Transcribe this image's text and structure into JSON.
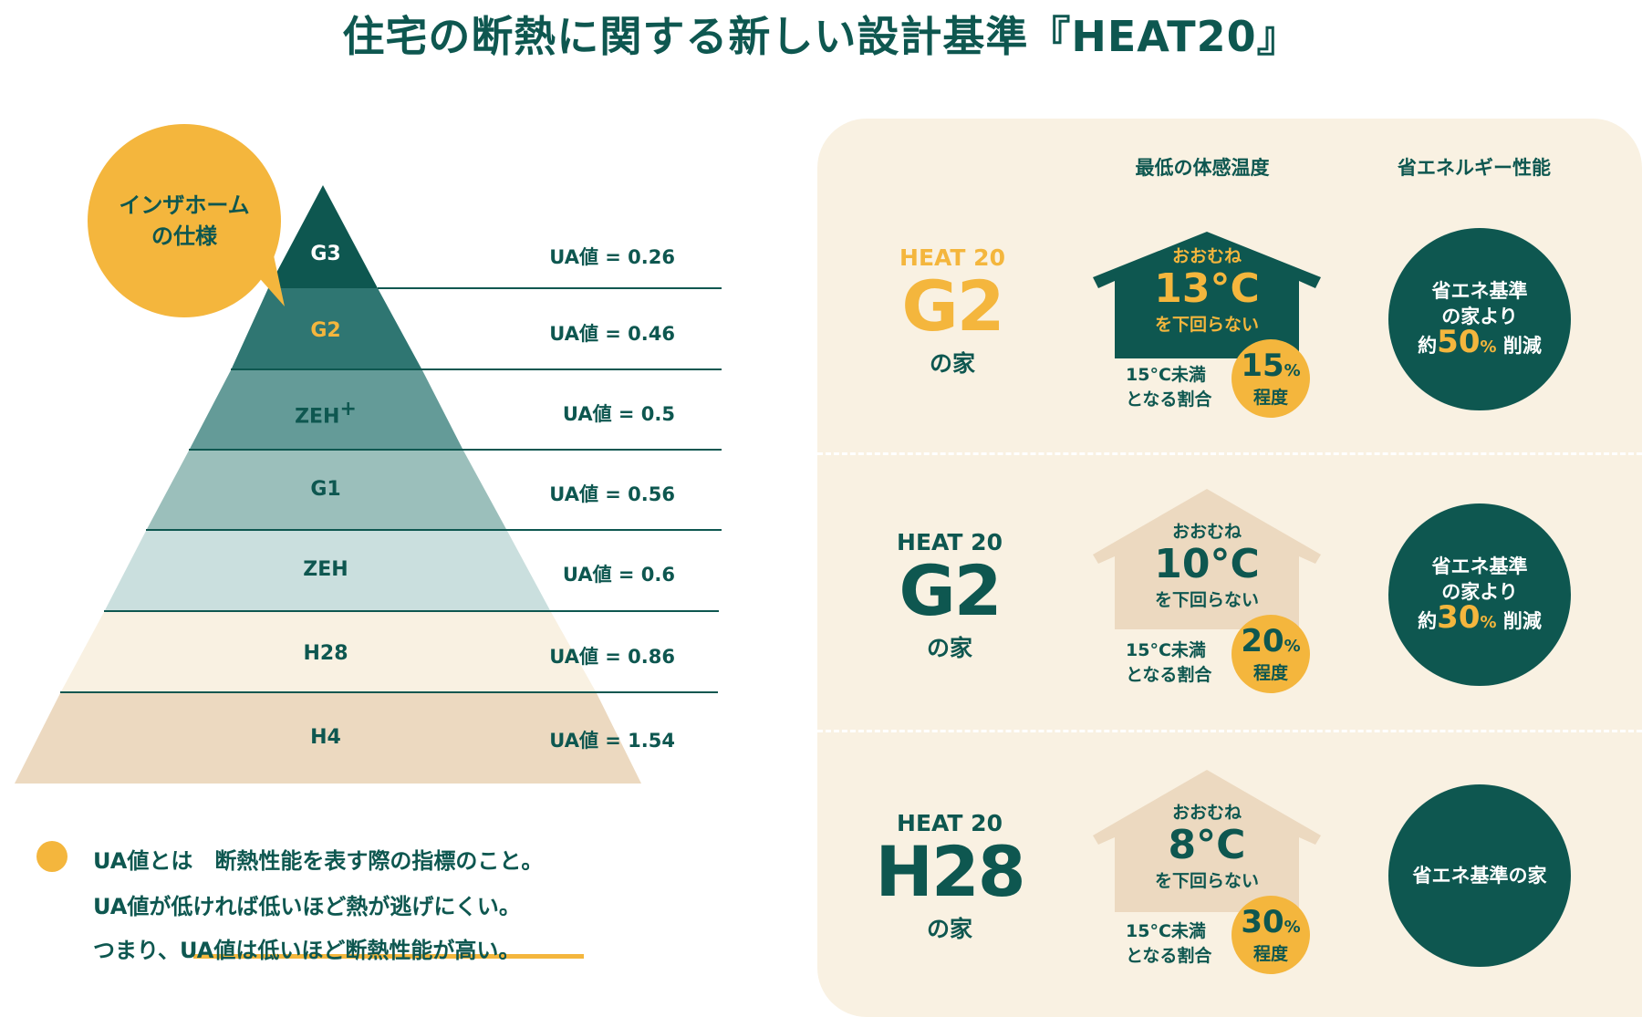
{
  "title": "住宅の断熱に関する新しい設計基準『HEAT20』",
  "colors": {
    "dark": "#0e5750",
    "accent": "#f4b63d",
    "panel": "#f9f1e2",
    "beige": "#ecd9c0"
  },
  "bubble": {
    "line1": "インザホーム",
    "line2": "の仕様"
  },
  "pyramid": {
    "levels": [
      {
        "name": "G3",
        "ua": "UA値 = 0.26"
      },
      {
        "name": "G2",
        "ua": "UA値 = 0.46"
      },
      {
        "name": "ZEH",
        "sup": "+",
        "ua": "UA値 = 0.5"
      },
      {
        "name": "G1",
        "ua": "UA値 = 0.56"
      },
      {
        "name": "ZEH",
        "ua": "UA値 = 0.6"
      },
      {
        "name": "H28",
        "ua": "UA値 = 0.86"
      },
      {
        "name": "H4",
        "ua": "UA値 = 1.54"
      }
    ]
  },
  "note": {
    "line1": "UA値とは　断熱性能を表す際の指標のこと。",
    "line2": "UA値が低ければ低いほど熱が逃げにくい。",
    "line3a": "つまり、",
    "line3b": "UA値は低いほど断熱性能が高い。"
  },
  "panel": {
    "col_temp": "最低の体感温度",
    "col_energy": "省エネルギー性能",
    "rows": [
      {
        "heat": "HEAT 20",
        "grade": "G2",
        "house": "の家",
        "approx": "おおむね",
        "temp": "13°C",
        "not_below": "を下回らない",
        "below_a": "15°C未満",
        "below_b": "となる割合",
        "pct": "15",
        "pct_unit": "%",
        "degree": "程度",
        "sav_a": "省エネ基準",
        "sav_b": "の家より",
        "sav_pre": "約",
        "sav_num": "50",
        "sav_unit": "%",
        "sav_post": "削減"
      },
      {
        "heat": "HEAT 20",
        "grade": "G2",
        "house": "の家",
        "approx": "おおむね",
        "temp": "10°C",
        "not_below": "を下回らない",
        "below_a": "15°C未満",
        "below_b": "となる割合",
        "pct": "20",
        "pct_unit": "%",
        "degree": "程度",
        "sav_a": "省エネ基準",
        "sav_b": "の家より",
        "sav_pre": "約",
        "sav_num": "30",
        "sav_unit": "%",
        "sav_post": "削減"
      },
      {
        "heat": "HEAT 20",
        "grade": "H28",
        "house": "の家",
        "approx": "おおむね",
        "temp": "8°C",
        "not_below": "を下回らない",
        "below_a": "15°C未満",
        "below_b": "となる割合",
        "pct": "30",
        "pct_unit": "%",
        "degree": "程度",
        "sav_only": "省エネ基準の家"
      }
    ]
  }
}
